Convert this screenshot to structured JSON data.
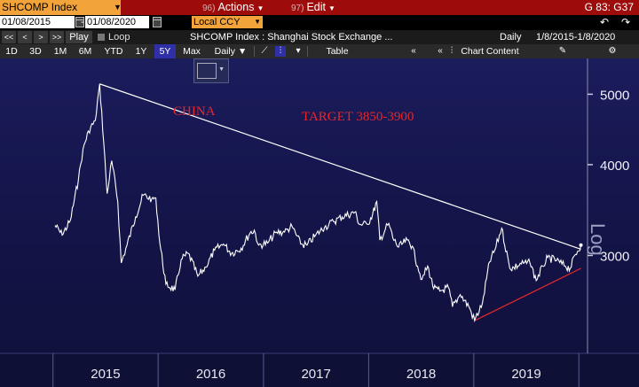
{
  "toolbar_top": {
    "ticker": "SHCOMP Index",
    "actions_num": "96)",
    "actions_label": "Actions",
    "edit_num": "97)",
    "edit_label": "Edit",
    "page_ref": "G 83: G37",
    "accent": "#9e0b0b",
    "field_color": "#f2a33a"
  },
  "range_bar": {
    "start_date": "01/08/2015",
    "end_date": "01/08/2020",
    "dash": "-",
    "currency": "Local CCY",
    "back_icon": "undo-icon",
    "forward_icon": "redo-icon"
  },
  "nav_bar": {
    "buttons": [
      "<<",
      "<",
      ">",
      ">>"
    ],
    "play_label": "Play",
    "loop_label": "Loop",
    "chart_title": "SHCOMP Index : Shanghai Stock Exchange ...",
    "frequency": "Daily",
    "range": "1/8/2015-1/8/2020"
  },
  "tool_bar": {
    "periods": [
      "1D",
      "3D",
      "1M",
      "6M",
      "YTD",
      "1Y",
      "5Y",
      "Max"
    ],
    "active_period": "5Y",
    "frequency_select": "Daily ▼",
    "table_label": "Table",
    "chart_content_label": "Chart Content"
  },
  "chart_data": {
    "type": "line",
    "yscale": "log",
    "ylabel": "Log",
    "ylim": [
      2200,
      5600
    ],
    "y_ticks": [
      3000,
      4000,
      5000
    ],
    "y_tick_labels": [
      "3000",
      "4000",
      "5000"
    ],
    "x_tick_labels": [
      "2015",
      "2016",
      "2017",
      "2018",
      "2019"
    ],
    "grid": false,
    "line_color": "#ffffff",
    "annotations": [
      {
        "text": "CHINA",
        "color": "#e8262a"
      },
      {
        "text": "TARGET 3850-3900",
        "color": "#e8262a"
      }
    ],
    "series": [
      {
        "x": [
          "2015-01-08",
          "2015-02-02",
          "2015-03-02",
          "2015-03-30",
          "2015-04-15",
          "2015-05-04",
          "2015-05-28",
          "2015-06-12",
          "2015-06-26",
          "2015-07-08",
          "2015-07-24",
          "2015-08-14",
          "2015-08-26",
          "2015-09-15",
          "2015-10-15",
          "2015-11-10",
          "2015-12-10",
          "2015-12-24",
          "2016-01-07",
          "2016-01-28",
          "2016-02-29",
          "2016-03-21",
          "2016-04-15",
          "2016-05-18",
          "2016-06-15",
          "2016-07-15",
          "2016-08-15",
          "2016-09-12",
          "2016-10-15",
          "2016-11-15",
          "2016-11-30",
          "2016-12-15",
          "2017-01-15",
          "2017-02-15",
          "2017-03-15",
          "2017-04-10",
          "2017-05-10",
          "2017-06-01",
          "2017-07-01",
          "2017-08-01",
          "2017-09-01",
          "2017-10-01",
          "2017-11-14",
          "2017-12-01",
          "2017-12-28",
          "2018-01-15",
          "2018-01-29",
          "2018-02-09",
          "2018-02-28",
          "2018-03-12",
          "2018-03-26",
          "2018-04-15",
          "2018-05-15",
          "2018-06-01",
          "2018-06-20",
          "2018-07-05",
          "2018-07-25",
          "2018-08-15",
          "2018-09-05",
          "2018-10-05",
          "2018-10-19",
          "2018-11-15",
          "2018-12-15",
          "2019-01-04",
          "2019-01-31",
          "2019-02-25",
          "2019-03-15",
          "2019-04-08",
          "2019-05-06",
          "2019-05-20",
          "2019-06-15",
          "2019-07-15",
          "2019-08-06",
          "2019-08-28",
          "2019-09-15",
          "2019-10-15",
          "2019-11-15",
          "2019-12-02",
          "2019-12-20",
          "2020-01-08"
        ],
        "y": [
          3300,
          3200,
          3350,
          3810,
          4200,
          4450,
          4600,
          5166,
          4300,
          3650,
          4050,
          3560,
          2930,
          3100,
          3390,
          3630,
          3590,
          3600,
          3120,
          2740,
          2690,
          2960,
          3020,
          2810,
          2890,
          3050,
          3110,
          3020,
          3070,
          3220,
          3250,
          3100,
          3120,
          3230,
          3230,
          3290,
          3110,
          3100,
          3200,
          3280,
          3340,
          3390,
          3440,
          3310,
          3310,
          3420,
          3560,
          3150,
          3260,
          3320,
          3170,
          3080,
          3150,
          3090,
          2900,
          2780,
          2900,
          2700,
          2680,
          2710,
          2550,
          2650,
          2550,
          2440,
          2580,
          2940,
          3050,
          3270,
          2880,
          2890,
          2920,
          2930,
          2770,
          2900,
          2980,
          2950,
          2900,
          2880,
          3010,
          3100
        ]
      }
    ],
    "lines": [
      {
        "kind": "trendline",
        "color": "#ffffff",
        "from": [
          "2015-06-12",
          5166
        ],
        "to": [
          "2020-01-08",
          3060
        ]
      },
      {
        "kind": "trendline",
        "color": "#e8262a",
        "from": [
          "2019-01-04",
          2440
        ],
        "to": [
          "2020-01-08",
          2880
        ]
      }
    ]
  }
}
